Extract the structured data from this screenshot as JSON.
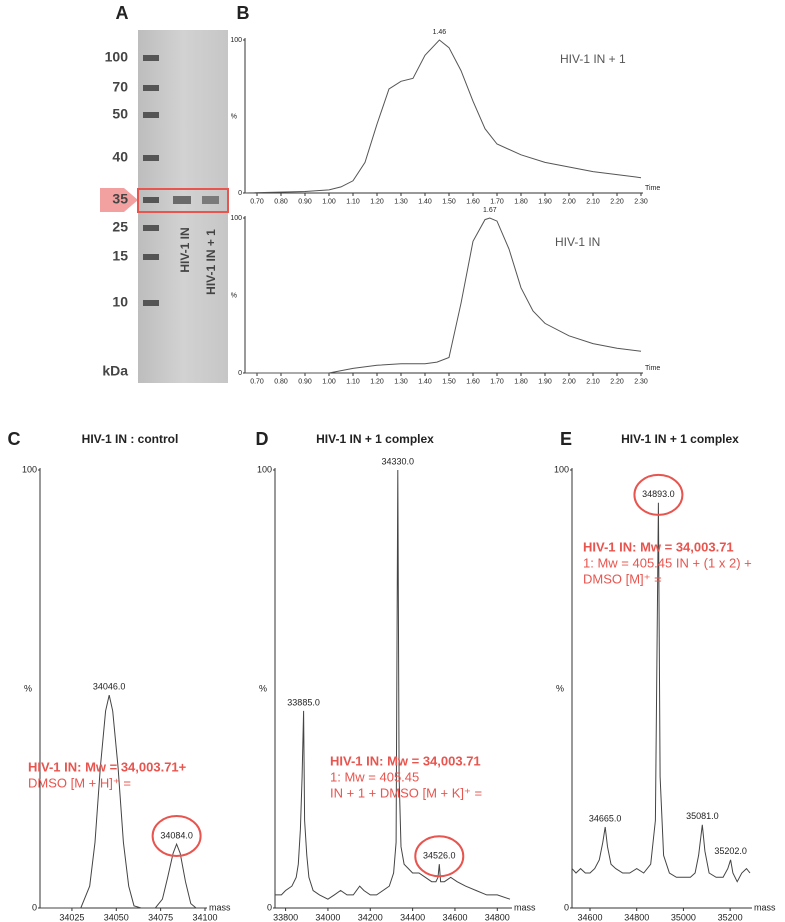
{
  "gel": {
    "panel_label": "A",
    "markers": [
      100,
      70,
      50,
      40,
      35,
      25,
      15,
      10
    ],
    "unit": "kDa",
    "lanes": [
      "HIV-1 IN",
      "HIV-1 IN + 1"
    ]
  },
  "chart_data": [
    {
      "type": "line",
      "panel_label": "B",
      "x_label": "Time",
      "y_label": "%",
      "x": [
        0.65,
        0.9,
        1.0,
        1.05,
        1.1,
        1.15,
        1.2,
        1.25,
        1.3,
        1.35,
        1.4,
        1.46,
        1.5,
        1.55,
        1.6,
        1.65,
        1.7,
        1.8,
        1.9,
        2.0,
        2.1,
        2.2,
        2.3
      ],
      "series": [
        {
          "name": "HIV-1 IN + 1",
          "color": "#555555",
          "values": [
            0,
            1,
            2,
            4,
            8,
            20,
            45,
            68,
            73,
            75,
            90,
            100,
            95,
            80,
            60,
            42,
            32,
            25,
            20,
            17,
            14,
            12,
            10
          ]
        }
      ],
      "annotations": [
        {
          "x": 1.46,
          "y": 100,
          "text": "1.46"
        }
      ],
      "xlim": [
        0.65,
        2.3
      ],
      "ylim": [
        0,
        100
      ],
      "xticks": [
        {
          "value": 0.7,
          "label": "0.70"
        },
        {
          "value": 0.8,
          "label": "0.80"
        },
        {
          "value": 0.9,
          "label": "0.90"
        },
        {
          "value": 1.0,
          "label": "1.00"
        },
        {
          "value": 1.1,
          "label": "1.10"
        },
        {
          "value": 1.2,
          "label": "1.20"
        },
        {
          "value": 1.3,
          "label": "1.30"
        },
        {
          "value": 1.4,
          "label": "1.40"
        },
        {
          "value": 1.5,
          "label": "1.50"
        },
        {
          "value": 1.6,
          "label": "1.60"
        },
        {
          "value": 1.7,
          "label": "1.70"
        },
        {
          "value": 1.8,
          "label": "1.80"
        },
        {
          "value": 1.9,
          "label": "1.90"
        },
        {
          "value": 2.0,
          "label": "2.00"
        },
        {
          "value": 2.1,
          "label": "2.10"
        },
        {
          "value": 2.2,
          "label": "2.20"
        },
        {
          "value": 2.3,
          "label": "2.30"
        }
      ],
      "yticks": [
        0,
        100
      ]
    },
    {
      "type": "line",
      "x_label": "Time",
      "y_label": "%",
      "x": [
        0.65,
        1.0,
        1.1,
        1.2,
        1.3,
        1.4,
        1.45,
        1.5,
        1.55,
        1.6,
        1.65,
        1.67,
        1.7,
        1.75,
        1.8,
        1.85,
        1.9,
        2.0,
        2.1,
        2.2,
        2.3
      ],
      "series": [
        {
          "name": "HIV-1 IN",
          "color": "#555555",
          "values": [
            0,
            0,
            3,
            5,
            6,
            6,
            7,
            10,
            45,
            85,
            99,
            100,
            98,
            80,
            55,
            40,
            32,
            24,
            19,
            16,
            14
          ]
        }
      ],
      "annotations": [
        {
          "x": 1.67,
          "y": 100,
          "text": "1.67"
        }
      ],
      "xlim": [
        0.65,
        2.3
      ],
      "ylim": [
        0,
        100
      ],
      "xticks": [
        {
          "value": 0.7,
          "label": "0.70"
        },
        {
          "value": 0.8,
          "label": "0.80"
        },
        {
          "value": 0.9,
          "label": "0.90"
        },
        {
          "value": 1.0,
          "label": "1.00"
        },
        {
          "value": 1.1,
          "label": "1.10"
        },
        {
          "value": 1.2,
          "label": "1.20"
        },
        {
          "value": 1.3,
          "label": "1.30"
        },
        {
          "value": 1.4,
          "label": "1.40"
        },
        {
          "value": 1.5,
          "label": "1.50"
        },
        {
          "value": 1.6,
          "label": "1.60"
        },
        {
          "value": 1.7,
          "label": "1.70"
        },
        {
          "value": 1.8,
          "label": "1.80"
        },
        {
          "value": 1.9,
          "label": "1.90"
        },
        {
          "value": 2.0,
          "label": "2.00"
        },
        {
          "value": 2.1,
          "label": "2.10"
        },
        {
          "value": 2.2,
          "label": "2.20"
        },
        {
          "value": 2.3,
          "label": "2.30"
        }
      ],
      "yticks": [
        0,
        100
      ]
    },
    {
      "type": "line",
      "panel_label": "C",
      "title": "HIV-1 IN : control",
      "x_label": "mass",
      "y_label": "%",
      "x": [
        34007,
        34030,
        34035,
        34038,
        34041,
        34044,
        34046,
        34048,
        34051,
        34054,
        34057,
        34060,
        34064,
        34072,
        34076,
        34079,
        34082,
        34084,
        34086,
        34089,
        34092,
        34095,
        34100
      ],
      "series": [
        {
          "color": "#444444",
          "values": [
            0,
            0,
            5,
            15,
            32,
            45,
            48.6,
            45,
            32,
            15,
            5,
            0.5,
            0,
            0,
            2,
            7,
            12.5,
            14.6,
            12.5,
            6,
            1,
            0,
            0
          ]
        }
      ],
      "annotations": [
        {
          "x": 34046,
          "y": 48.6,
          "text": "34046.0"
        },
        {
          "x": 34084,
          "y": 14.6,
          "text": "34084.0",
          "circled": true
        }
      ],
      "notes": {
        "color": "#e8544e",
        "lines": [
          "HIV-1  IN:  Mw  =  34,003.71+",
          "DMSO  [M + H]⁺ ="
        ]
      },
      "xlim": [
        34007,
        34100
      ],
      "ylim": [
        0,
        100
      ],
      "xticks": [
        34025,
        34050,
        34075,
        34100
      ],
      "yticks": [
        0,
        100
      ]
    },
    {
      "type": "line",
      "panel_label": "D",
      "title": "HIV-1 IN + 1 complex",
      "x_label": "mass",
      "y_label": "%",
      "x": [
        33750,
        33780,
        33800,
        33830,
        33850,
        33860,
        33870,
        33878,
        33885,
        33890,
        33900,
        33910,
        33930,
        33960,
        34000,
        34030,
        34060,
        34090,
        34120,
        34150,
        34170,
        34200,
        34230,
        34260,
        34290,
        34310,
        34322,
        34330,
        34336,
        34345,
        34360,
        34380,
        34400,
        34430,
        34460,
        34490,
        34510,
        34520,
        34526,
        34532,
        34550,
        34580,
        34610,
        34650,
        34700,
        34750,
        34800,
        34860
      ],
      "series": [
        {
          "color": "#444444",
          "values": [
            3,
            3,
            4,
            5,
            7,
            10,
            18,
            30,
            45,
            20,
            12,
            7,
            4,
            3,
            2,
            3,
            4,
            3,
            3,
            5,
            4,
            3,
            3,
            4,
            5,
            8,
            15,
            100,
            30,
            14,
            10,
            9,
            8,
            8,
            7,
            6,
            6,
            7,
            10,
            6,
            6,
            7,
            6,
            5,
            4,
            3,
            3,
            2
          ]
        }
      ],
      "annotations": [
        {
          "x": 33885,
          "y": 45,
          "text": "33885.0"
        },
        {
          "x": 34330,
          "y": 100,
          "text": "34330.0"
        },
        {
          "x": 34526,
          "y": 10,
          "text": "34526.0",
          "circled": true
        }
      ],
      "notes": {
        "color": "#e8544e",
        "lines": [
          "HIV-1 IN: Mw = 34,003.71",
          "1: Mw = 405.45",
          "IN + 1 + DMSO [M + K]⁺ ="
        ]
      },
      "xlim": [
        33750,
        34860
      ],
      "ylim": [
        0,
        100
      ],
      "xticks": [
        33800,
        34000,
        34200,
        34400,
        34600,
        34800
      ],
      "yticks": [
        0,
        100
      ]
    },
    {
      "type": "line",
      "panel_label": "E",
      "title": "HIV-1 IN + 1 complex",
      "x_label": "mass",
      "y_label": "%",
      "x": [
        34523,
        34540,
        34560,
        34580,
        34600,
        34620,
        34640,
        34655,
        34665,
        34675,
        34690,
        34710,
        34740,
        34770,
        34800,
        34830,
        34860,
        34880,
        34893,
        34900,
        34915,
        34940,
        34970,
        35000,
        35030,
        35050,
        35065,
        35081,
        35092,
        35110,
        35140,
        35170,
        35190,
        35202,
        35212,
        35230,
        35250,
        35270,
        35285
      ],
      "series": [
        {
          "color": "#444444",
          "values": [
            9,
            8,
            9,
            8,
            8,
            9,
            11,
            15,
            18.5,
            14,
            10,
            9,
            8,
            8,
            9,
            8,
            10,
            20,
            92.5,
            30,
            12,
            8,
            7,
            7,
            7,
            8,
            12,
            19,
            13,
            8,
            7,
            7,
            9,
            11,
            8,
            6,
            8,
            9,
            8
          ]
        }
      ],
      "annotations": [
        {
          "x": 34665,
          "y": 18.5,
          "text": "34665.0"
        },
        {
          "x": 34893,
          "y": 92.5,
          "text": "34893.0",
          "circled": true
        },
        {
          "x": 35081,
          "y": 19,
          "text": "35081.0"
        },
        {
          "x": 35202,
          "y": 11,
          "text": "35202.0"
        }
      ],
      "notes": {
        "color": "#e8544e",
        "lines": [
          "HIV-1 IN: Mw = 34,003.71",
          "1: Mw = 405.45 IN + (1 x 2) +",
          "DMSO [M]⁺ ="
        ]
      },
      "xlim": [
        34523,
        35285
      ],
      "ylim": [
        0,
        100
      ],
      "xticks": [
        34600,
        34800,
        35000,
        35200
      ],
      "yticks": [
        0,
        100
      ]
    }
  ]
}
